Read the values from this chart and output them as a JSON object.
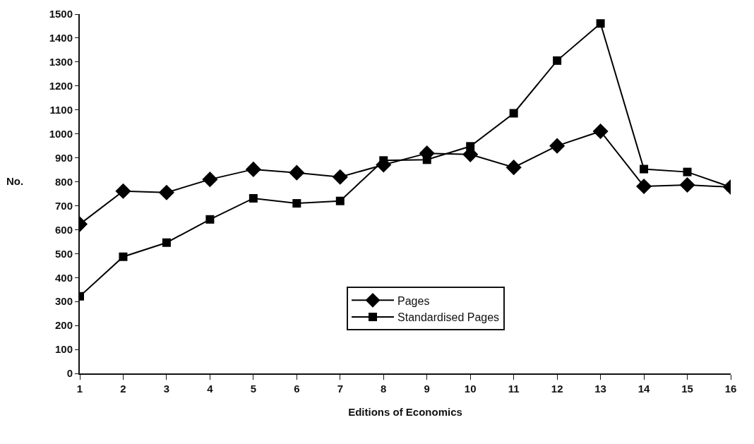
{
  "chart_data": {
    "type": "line",
    "xlabel": "Editions of Economics",
    "ylabel": "No.",
    "x": [
      1,
      2,
      3,
      4,
      5,
      6,
      7,
      8,
      9,
      10,
      11,
      12,
      13,
      14,
      15,
      16
    ],
    "series": [
      {
        "name": "Pages",
        "color": "#000000",
        "marker": "diamond",
        "values": [
          623,
          761,
          755,
          810,
          852,
          838,
          820,
          871,
          919,
          914,
          860,
          950,
          1011,
          781,
          787,
          778
        ]
      },
      {
        "name": "Standardised Pages",
        "color": "#000000",
        "marker": "square",
        "values": [
          322,
          487,
          546,
          643,
          731,
          710,
          720,
          889,
          892,
          948,
          1086,
          1306,
          1461,
          853,
          841,
          778
        ]
      }
    ],
    "xlim": [
      1,
      16
    ],
    "xticks": [
      1,
      2,
      3,
      4,
      5,
      6,
      7,
      8,
      9,
      10,
      11,
      12,
      13,
      14,
      15,
      16
    ],
    "ylim": [
      0,
      1500
    ],
    "yticks": [
      0,
      100,
      200,
      300,
      400,
      500,
      600,
      700,
      800,
      900,
      1000,
      1100,
      1200,
      1300,
      1400,
      1500
    ],
    "grid": false,
    "legend": "bottom",
    "line_style": "solid"
  }
}
